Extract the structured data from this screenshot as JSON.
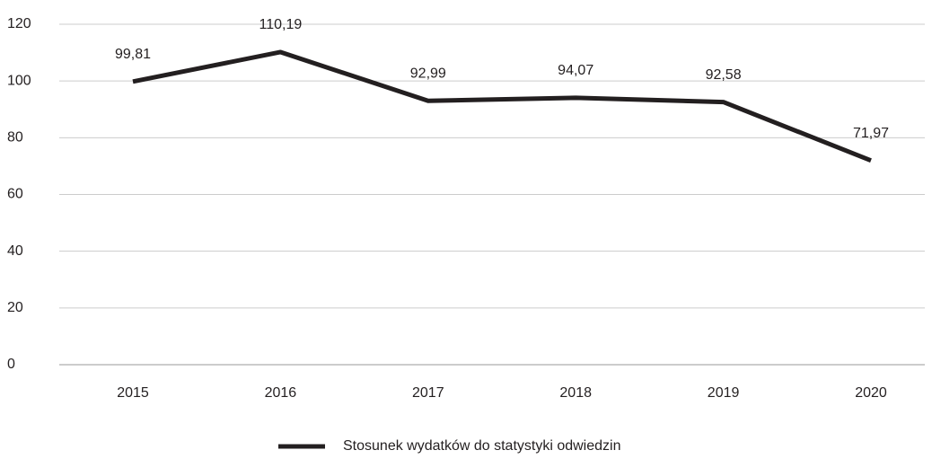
{
  "chart_data": {
    "type": "line",
    "categories": [
      "2015",
      "2016",
      "2017",
      "2018",
      "2019",
      "2020"
    ],
    "series": [
      {
        "name": "Stosunek wydatków do statystyki odwiedzin",
        "color": "#231f20",
        "values": [
          99.81,
          110.19,
          92.99,
          94.07,
          92.58,
          71.97
        ],
        "value_labels": [
          "99,81",
          "110,19",
          "92,99",
          "94,07",
          "92,58",
          "71,97"
        ]
      }
    ],
    "ylim": [
      0,
      120
    ],
    "yticks": [
      0,
      20,
      40,
      60,
      80,
      100,
      120
    ],
    "grid": true,
    "legend": "bottom"
  }
}
